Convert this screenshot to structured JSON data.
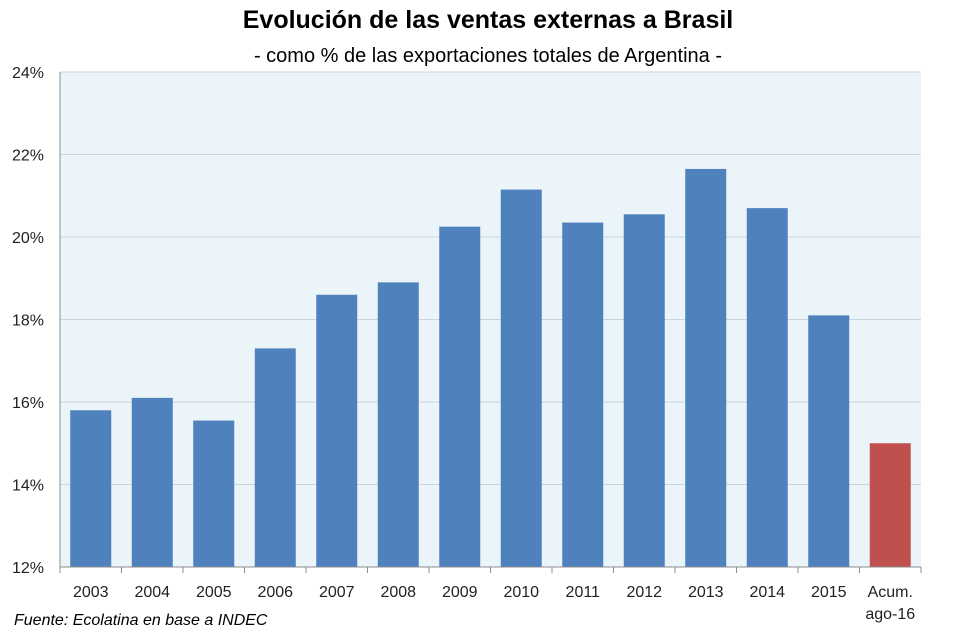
{
  "chart_data": {
    "type": "bar",
    "title": "Evolución de las ventas externas a Brasil",
    "subtitle": "- como % de las exportaciones totales de Argentina -",
    "xlabel": "",
    "ylabel": "",
    "ylim": [
      12,
      24
    ],
    "yticks": [
      12,
      14,
      16,
      18,
      20,
      22,
      24
    ],
    "ytick_labels": [
      "12%",
      "14%",
      "16%",
      "18%",
      "20%",
      "22%",
      "24%"
    ],
    "categories": [
      "2003",
      "2004",
      "2005",
      "2006",
      "2007",
      "2008",
      "2009",
      "2010",
      "2011",
      "2012",
      "2013",
      "2014",
      "2015",
      "Acum. ago-16"
    ],
    "category_lines": [
      [
        "2003"
      ],
      [
        "2004"
      ],
      [
        "2005"
      ],
      [
        "2006"
      ],
      [
        "2007"
      ],
      [
        "2008"
      ],
      [
        "2009"
      ],
      [
        "2010"
      ],
      [
        "2011"
      ],
      [
        "2012"
      ],
      [
        "2013"
      ],
      [
        "2014"
      ],
      [
        "2015"
      ],
      [
        "Acum.",
        "ago-16"
      ]
    ],
    "values": [
      15.8,
      16.1,
      15.55,
      17.3,
      18.6,
      18.9,
      20.25,
      21.15,
      20.35,
      20.55,
      21.65,
      20.7,
      18.1,
      15.0
    ],
    "bar_colors": [
      "#4f81bd",
      "#4f81bd",
      "#4f81bd",
      "#4f81bd",
      "#4f81bd",
      "#4f81bd",
      "#4f81bd",
      "#4f81bd",
      "#4f81bd",
      "#4f81bd",
      "#4f81bd",
      "#4f81bd",
      "#4f81bd",
      "#c0504d"
    ],
    "grid": true,
    "legend": "none"
  },
  "colors": {
    "plot_background": "#ebf4f8",
    "gridline": "#c8d6dc",
    "axis": "#8c8c8c"
  },
  "source": "Fuente: Ecolatina en base a INDEC"
}
